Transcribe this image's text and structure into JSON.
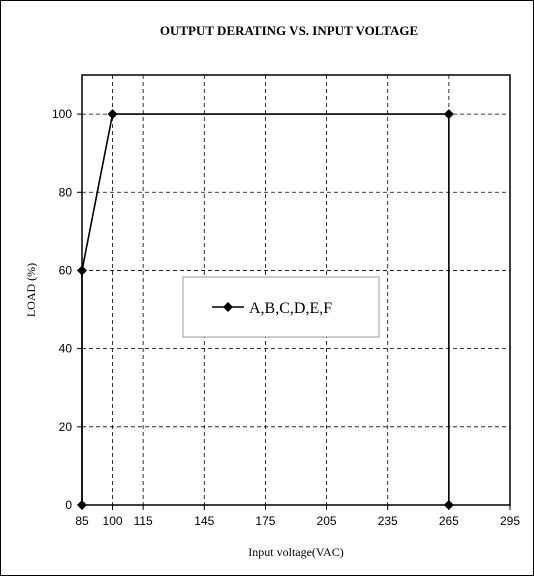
{
  "chart_data": {
    "type": "line",
    "title": "OUTPUT DERATING VS. INPUT VOLTAGE",
    "xlabel": "Input voltage(VAC)",
    "ylabel": "LOAD (%)",
    "x_ticks": [
      85,
      100,
      115,
      145,
      175,
      205,
      235,
      265,
      295
    ],
    "y_ticks": [
      0,
      20,
      40,
      60,
      80,
      100
    ],
    "xlim": [
      85,
      295
    ],
    "ylim": [
      0,
      110
    ],
    "grid": true,
    "grid_style": "dashed",
    "legend_position": "center",
    "series": [
      {
        "name": "A,B,C,D,E,F",
        "color": "#000000",
        "marker": "diamond",
        "points": [
          [
            85,
            0
          ],
          [
            85,
            60
          ],
          [
            100,
            100
          ],
          [
            265,
            100
          ],
          [
            265,
            0
          ]
        ]
      }
    ]
  }
}
